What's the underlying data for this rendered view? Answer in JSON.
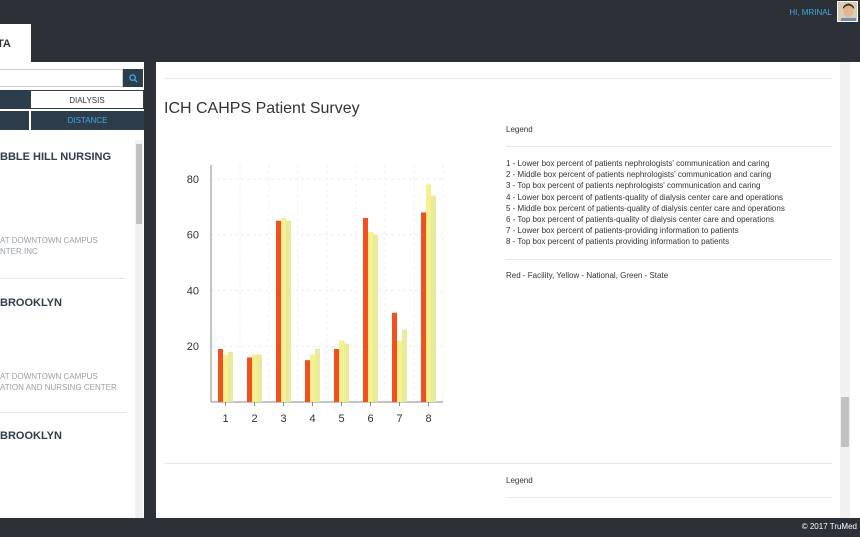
{
  "header": {
    "active_tab": "TA",
    "greeting": "HI, MRINAL"
  },
  "sidebar": {
    "search_placeholder": "",
    "segments_row1": [
      "",
      "DIALYSIS"
    ],
    "segments_row2": [
      "",
      "DISTANCE"
    ],
    "results": [
      {
        "name": "BBLE HILL NURSING",
        "lines": [
          "AT DOWNTOWN CAMPUS",
          "NTER INC"
        ]
      },
      {
        "name": "BROOKLYN",
        "lines": [
          "AT DOWNTOWN CAMPUS",
          "ATION AND NURSING CENTER"
        ]
      },
      {
        "name": "BROOKLYN",
        "lines": []
      }
    ]
  },
  "survey": {
    "title": "ICH CAHPS Patient Survey",
    "legend_heading": "Legend",
    "legend_items": [
      "1 - Lower box percent of patients nephrologists' communication and caring",
      "2 - Middle box percent of patients nephrologists' communication and caring",
      "3 - Top box percent of patients nephrologists' communication and caring",
      "4 - Lower box percent of patients-quality of dialysis center care and operations",
      "5 - Middle box percent of patients-quality of dialysis center care and operations",
      "6 - Top box percent of patients-quality of dialysis center care and operations",
      "7 - Lower box percent of patients-providing information to patients",
      "8 - Top box percent of patients providing information to patients"
    ],
    "color_key": "Red - Facility, Yellow - National, Green - State",
    "legend_heading_2": "Legend"
  },
  "chart_data": {
    "type": "bar",
    "categories": [
      "1",
      "2",
      "3",
      "4",
      "5",
      "6",
      "7",
      "8"
    ],
    "series": [
      {
        "name": "Facility",
        "color": "#f2501f",
        "values": [
          19,
          16,
          65,
          15,
          19,
          66,
          32,
          68
        ]
      },
      {
        "name": "National",
        "color": "#f7f08e",
        "values": [
          17,
          17,
          66,
          17,
          22,
          61,
          22,
          78
        ]
      },
      {
        "name": "State",
        "color": "#e8eb9b",
        "values": [
          18,
          17,
          65,
          19,
          21,
          60,
          26,
          74
        ]
      }
    ],
    "yticks": [
      20,
      40,
      60,
      80
    ],
    "ylim": [
      0,
      85
    ],
    "title": "",
    "xlabel": "",
    "ylabel": ""
  },
  "footer": {
    "copyright": "© 2017 TruMed"
  }
}
